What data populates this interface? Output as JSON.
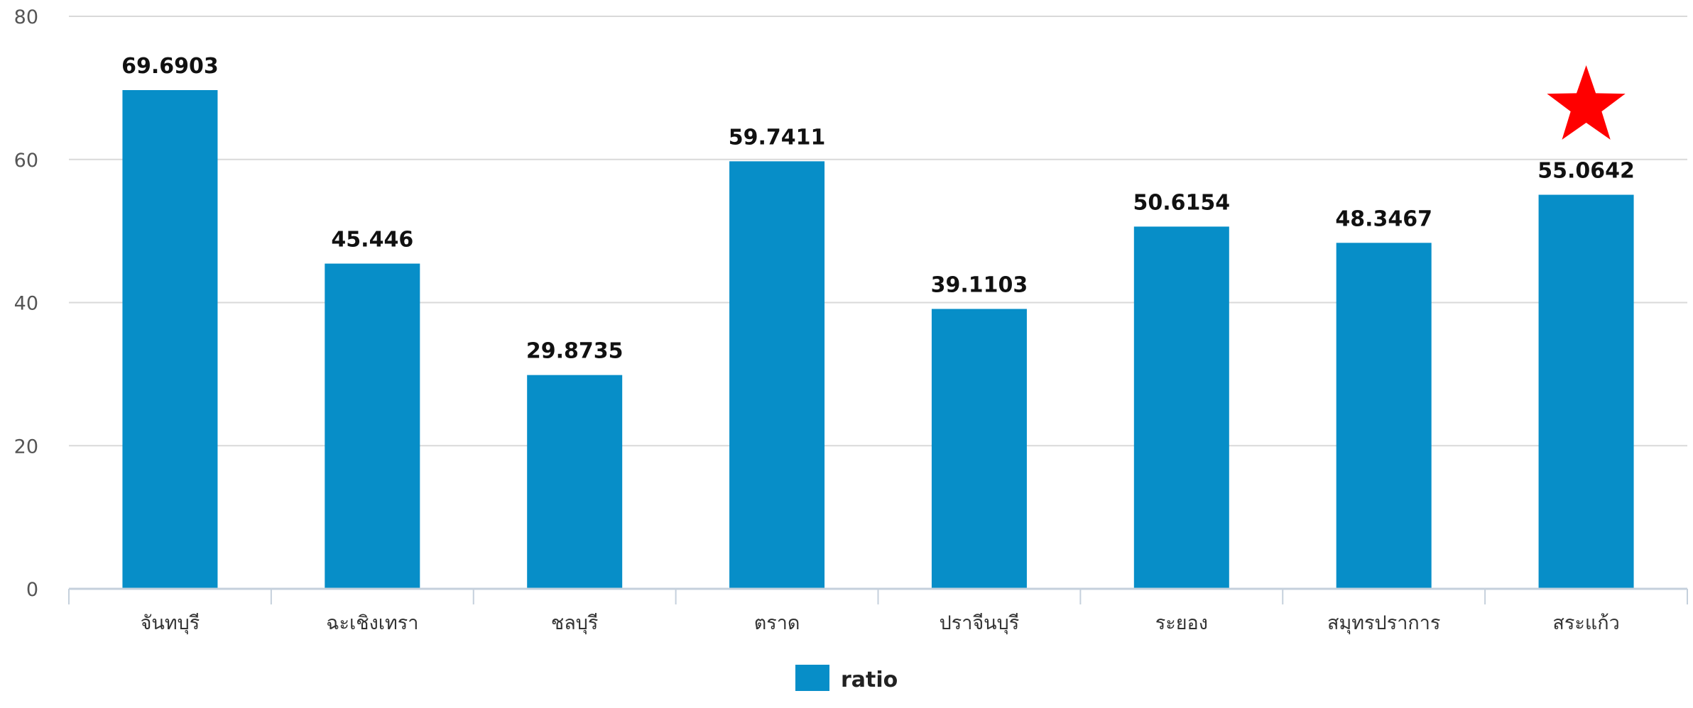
{
  "chart_data": {
    "type": "bar",
    "categories": [
      "จันทบุรี",
      "ฉะเชิงเทรา",
      "ชลบุรี",
      "ตราด",
      "ปราจีนบุรี",
      "ระยอง",
      "สมุทรปราการ",
      "สระแก้ว"
    ],
    "series": [
      {
        "name": "ratio",
        "values": [
          69.6903,
          45.446,
          29.8735,
          59.7411,
          39.1103,
          50.6154,
          48.3467,
          55.0642
        ],
        "labels": [
          "69.6903",
          "45.446",
          "29.8735",
          "59.7411",
          "39.1103",
          "50.6154",
          "48.3467",
          "55.0642"
        ],
        "color": "#078ec8"
      }
    ],
    "title": "",
    "xlabel": "",
    "ylabel": "",
    "ylim": [
      0,
      80
    ],
    "yticks": [
      0,
      20,
      40,
      60,
      80
    ],
    "grid": true,
    "legend": "bottom-center",
    "highlight": {
      "category": "สระแก้ว",
      "marker": "star-icon",
      "color": "#ff0000"
    }
  }
}
